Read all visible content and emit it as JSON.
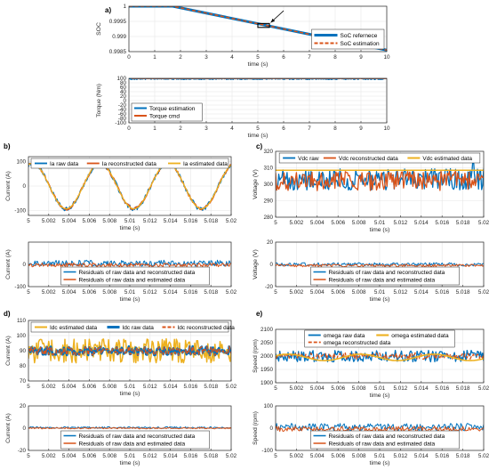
{
  "colors": {
    "blue": "#0072BD",
    "orange": "#D95319",
    "yellow": "#EDB120",
    "grid": "#e6e6e6",
    "axis": "#262626"
  },
  "chart_data": [
    {
      "id": "a-soc",
      "panel_letter": "a)",
      "type": "line",
      "xlabel": "time (s)",
      "ylabel": "SOC",
      "xlim": [
        0,
        10
      ],
      "ylim": [
        0.9985,
        1.0
      ],
      "xticks": [
        0,
        1,
        2,
        3,
        4,
        5,
        6,
        7,
        8,
        9,
        10
      ],
      "xticklabels": [
        "0",
        "1",
        "2",
        "3",
        "4",
        "5",
        "6",
        "7",
        "8",
        "9",
        "10"
      ],
      "yticks": [
        0.9985,
        0.999,
        0.9995,
        1.0
      ],
      "yticklabels": [
        "0.9985",
        "0.999",
        "0.9995",
        "1"
      ],
      "legend": "right",
      "series": [
        {
          "name": "SoC refernece",
          "color": "blue",
          "width": 3,
          "style": "solid",
          "gen": "pts",
          "x": [
            0,
            1.7,
            10
          ],
          "y": [
            1.0,
            1.0,
            0.99855
          ]
        },
        {
          "name": "SoC estimation",
          "color": "orange",
          "width": 1.5,
          "style": "dashed",
          "gen": "pts",
          "x": [
            0,
            1.7,
            10
          ],
          "y": [
            1.0,
            1.0,
            0.99855
          ]
        }
      ],
      "annotation": {
        "box_x": [
          5.0,
          5.45
        ],
        "box_y": [
          0.9993,
          0.99943
        ],
        "arrow_from": [
          6.0,
          0.99985
        ],
        "arrow_to": [
          5.5,
          0.99946
        ]
      }
    },
    {
      "id": "a-torque",
      "type": "line",
      "xlabel": "time (s)",
      "ylabel": "Torque (Nm)",
      "xlim": [
        0,
        10
      ],
      "ylim": [
        -100,
        100
      ],
      "xticks": [
        0,
        1,
        2,
        3,
        4,
        5,
        6,
        7,
        8,
        9,
        10
      ],
      "xticklabels": [
        "0",
        "1",
        "2",
        "3",
        "4",
        "5",
        "6",
        "7",
        "8",
        "9",
        "10"
      ],
      "yticks": [
        -100,
        -80,
        -60,
        -40,
        -20,
        0,
        20,
        40,
        60,
        80,
        100
      ],
      "yticklabels": [
        "-100",
        "-80",
        "-60",
        "-40",
        "-20",
        "0",
        "20",
        "40",
        "60",
        "80",
        "100"
      ],
      "legend": "bottom-left",
      "series": [
        {
          "name": "Torque estimation",
          "color": "blue",
          "width": 1.5,
          "gen": "noise",
          "base": 98,
          "amp": 3,
          "n": 420,
          "seed": 11
        },
        {
          "name": "Torque cmd",
          "color": "orange",
          "width": 1.5,
          "gen": "const",
          "base": 100,
          "x0": 0.1
        }
      ]
    },
    {
      "id": "b-top",
      "panel_letter": "b)",
      "type": "line",
      "xlabel": "time (s)",
      "ylabel": "Current (A)",
      "xlim": [
        5,
        5.02
      ],
      "ylim": [
        -120,
        120
      ],
      "xticks": [
        5,
        5.002,
        5.004,
        5.006,
        5.008,
        5.01,
        5.012,
        5.014,
        5.016,
        5.018,
        5.02
      ],
      "xticklabels": [
        "5",
        "5.002",
        "5.004",
        "5.006",
        "5.008",
        "5.01",
        "5.012",
        "5.014",
        "5.016",
        "5.018",
        "5.02"
      ],
      "yticks": [
        -100,
        0,
        100
      ],
      "yticklabels": [
        "-100",
        "0",
        "100"
      ],
      "legend": "top",
      "series": [
        {
          "name": "Ia raw data",
          "color": "blue",
          "width": 1.3,
          "gen": "sine",
          "amp": 93,
          "period": 0.00667,
          "phase": 1.2,
          "noise": 9,
          "n": 220,
          "seed": 3
        },
        {
          "name": "Ia reconstructed data",
          "color": "orange",
          "width": 1.3,
          "gen": "sine",
          "amp": 93,
          "period": 0.00667,
          "phase": 1.2,
          "noise": 6,
          "n": 220,
          "seed": 5
        },
        {
          "name": "Ia estimated data",
          "color": "yellow",
          "width": 1.3,
          "gen": "sine",
          "amp": 93,
          "period": 0.00667,
          "phase": 1.2,
          "noise": 0,
          "n": 220,
          "seed": 7
        }
      ]
    },
    {
      "id": "b-bottom",
      "type": "line",
      "xlabel": "time (s)",
      "ylabel": "Current (A)",
      "xlim": [
        5,
        5.02
      ],
      "ylim": [
        -100,
        100
      ],
      "xticks": [
        5,
        5.002,
        5.004,
        5.006,
        5.008,
        5.01,
        5.012,
        5.014,
        5.016,
        5.018,
        5.02
      ],
      "xticklabels": [
        "5",
        "5.002",
        "5.004",
        "5.006",
        "5.008",
        "5.01",
        "5.012",
        "5.014",
        "5.016",
        "5.018",
        "5.02"
      ],
      "yticks": [
        -100,
        0
      ],
      "yticklabels": [
        "-100",
        "0"
      ],
      "legend": "bottom-center",
      "series": [
        {
          "name": "Residuals of raw data and reconstructed data",
          "color": "blue",
          "width": 1,
          "gen": "noise",
          "base": 5,
          "amp": 14,
          "n": 220,
          "seed": 21
        },
        {
          "name": "Residuals of raw data and estimated data",
          "color": "orange",
          "width": 1,
          "gen": "noise",
          "base": -2,
          "amp": 9,
          "n": 220,
          "seed": 23
        }
      ]
    },
    {
      "id": "c-top",
      "panel_letter": "c)",
      "type": "line",
      "xlabel": "time (s)",
      "ylabel": "Voltage (V)",
      "xlim": [
        5,
        5.02
      ],
      "ylim": [
        280,
        320
      ],
      "xticks": [
        5,
        5.002,
        5.004,
        5.006,
        5.008,
        5.01,
        5.012,
        5.014,
        5.016,
        5.018,
        5.02
      ],
      "xticklabels": [
        "5",
        "5.002",
        "5.004",
        "5.006",
        "5.008",
        "5.01",
        "5.012",
        "5.014",
        "5.016",
        "5.018",
        "5.02"
      ],
      "yticks": [
        280,
        290,
        300,
        310,
        320
      ],
      "yticklabels": [
        "280",
        "290",
        "300",
        "310",
        "320"
      ],
      "legend": "top",
      "series": [
        {
          "name": "Vdc raw",
          "color": "blue",
          "width": 1.3,
          "gen": "noise",
          "base": 303,
          "amp": 6.5,
          "n": 200,
          "seed": 31,
          "spike_at": 5.019,
          "spike": 318
        },
        {
          "name": "Vdc reconstructed data",
          "color": "orange",
          "width": 1.3,
          "gen": "noise",
          "base": 302,
          "amp": 6,
          "n": 200,
          "seed": 33
        },
        {
          "name": "Vdc estimated data",
          "color": "yellow",
          "width": 1.5,
          "gen": "const",
          "base": 308.5
        }
      ]
    },
    {
      "id": "c-bottom",
      "type": "line",
      "xlabel": "time (s)",
      "ylabel": "Voltage (V)",
      "xlim": [
        5,
        5.02
      ],
      "ylim": [
        -20,
        20
      ],
      "xticks": [
        5,
        5.002,
        5.004,
        5.006,
        5.008,
        5.01,
        5.012,
        5.014,
        5.016,
        5.018,
        5.02
      ],
      "xticklabels": [
        "5",
        "5.002",
        "5.004",
        "5.006",
        "5.008",
        "5.01",
        "5.012",
        "5.014",
        "5.016",
        "5.018",
        "5.02"
      ],
      "yticks": [
        -20,
        0,
        20
      ],
      "yticklabels": [
        "-20",
        "0",
        "20"
      ],
      "legend": "bottom-center",
      "series": [
        {
          "name": "Residuals of raw data and reconstructed data",
          "color": "blue",
          "width": 1,
          "gen": "noise",
          "base": 0,
          "amp": 1.5,
          "n": 200,
          "seed": 41
        },
        {
          "name": "Residuals of raw data and estimated data",
          "color": "orange",
          "width": 1,
          "gen": "noise",
          "base": -1,
          "amp": 1.2,
          "n": 200,
          "seed": 43
        }
      ]
    },
    {
      "id": "d-top",
      "panel_letter": "d)",
      "type": "line",
      "xlabel": "time (s)",
      "ylabel": "Current (A)",
      "xlim": [
        5,
        5.02
      ],
      "ylim": [
        70,
        110
      ],
      "xticks": [
        5,
        5.002,
        5.004,
        5.006,
        5.008,
        5.01,
        5.012,
        5.014,
        5.016,
        5.018,
        5.02
      ],
      "xticklabels": [
        "5",
        "5.002",
        "5.004",
        "5.006",
        "5.008",
        "5.01",
        "5.012",
        "5.014",
        "5.016",
        "5.018",
        "5.02"
      ],
      "yticks": [
        70,
        80,
        90,
        100,
        110
      ],
      "yticklabels": [
        "70",
        "80",
        "90",
        "100",
        "110"
      ],
      "legend": "top",
      "series": [
        {
          "name": "Idc estimated data",
          "color": "yellow",
          "width": 1.5,
          "gen": "noise",
          "base": 90,
          "amp": 8,
          "n": 200,
          "seed": 51
        },
        {
          "name": "Idc raw data",
          "color": "blue",
          "width": 2.5,
          "gen": "noise",
          "base": 90,
          "amp": 3,
          "n": 200,
          "seed": 53
        },
        {
          "name": "Idc reconstructed data",
          "color": "orange",
          "width": 1.5,
          "style": "dashed",
          "gen": "noise",
          "base": 90,
          "amp": 3,
          "n": 200,
          "seed": 53
        }
      ]
    },
    {
      "id": "d-bottom",
      "type": "line",
      "xlabel": "time (s)",
      "ylabel": "Current (A)",
      "xlim": [
        5,
        5.02
      ],
      "ylim": [
        -20,
        20
      ],
      "xticks": [
        5,
        5.002,
        5.004,
        5.006,
        5.008,
        5.01,
        5.012,
        5.014,
        5.016,
        5.018,
        5.02
      ],
      "xticklabels": [
        "5",
        "5.002",
        "5.004",
        "5.006",
        "5.008",
        "5.01",
        "5.012",
        "5.014",
        "5.016",
        "5.018",
        "5.02"
      ],
      "yticks": [
        -20,
        0,
        20
      ],
      "yticklabels": [
        "-20",
        "0",
        "20"
      ],
      "legend": "bottom-center",
      "series": [
        {
          "name": "Residuals of raw data and reconstructed data",
          "color": "blue",
          "width": 1,
          "gen": "noise",
          "base": 0.5,
          "amp": 0.8,
          "n": 200,
          "seed": 61
        },
        {
          "name": "Residuals of raw data and estimated data",
          "color": "orange",
          "width": 1,
          "gen": "noise",
          "base": 0,
          "amp": 0.6,
          "n": 200,
          "seed": 63
        }
      ]
    },
    {
      "id": "e-top",
      "panel_letter": "e)",
      "type": "line",
      "xlabel": "time (s)",
      "ylabel": "Speed (rpm)",
      "xlim": [
        5,
        5.02
      ],
      "ylim": [
        1900,
        2100
      ],
      "xticks": [
        5,
        5.002,
        5.004,
        5.006,
        5.008,
        5.01,
        5.012,
        5.014,
        5.016,
        5.018,
        5.02
      ],
      "xticklabels": [
        "5",
        "5.002",
        "5.004",
        "5.006",
        "5.008",
        "5.01",
        "5.012",
        "5.014",
        "5.016",
        "5.018",
        "5.02"
      ],
      "yticks": [
        1900,
        1950,
        2000,
        2050,
        2100
      ],
      "yticklabels": [
        "1900",
        "1950",
        "2000",
        "2050",
        "2100"
      ],
      "legend": "top",
      "series": [
        {
          "name": "omega raw data",
          "color": "blue",
          "width": 1.3,
          "gen": "noise",
          "base": 2000,
          "amp": 22,
          "n": 200,
          "seed": 71
        },
        {
          "name": "omega reconstructed data",
          "color": "orange",
          "width": 1.3,
          "style": "dashed",
          "gen": "noise",
          "base": 2000,
          "amp": 12,
          "n": 200,
          "seed": 73
        },
        {
          "name": "omega estimated data",
          "color": "yellow",
          "width": 1.6,
          "gen": "sine",
          "amp": 12,
          "period": 0.007,
          "phase": 0.5,
          "offset": 1995,
          "noise": 0,
          "n": 200,
          "seed": 75
        }
      ]
    },
    {
      "id": "e-bottom",
      "type": "line",
      "xlabel": "time (s)",
      "ylabel": "Speed (rpm)",
      "xlim": [
        5,
        5.02
      ],
      "ylim": [
        -100,
        100
      ],
      "xticks": [
        5,
        5.002,
        5.004,
        5.006,
        5.008,
        5.01,
        5.012,
        5.014,
        5.016,
        5.018,
        5.02
      ],
      "xticklabels": [
        "5",
        "5.002",
        "5.004",
        "5.006",
        "5.008",
        "5.01",
        "5.012",
        "5.014",
        "5.016",
        "5.018",
        "5.02"
      ],
      "yticks": [
        -100,
        0,
        100
      ],
      "yticklabels": [
        "-100",
        "0",
        "100"
      ],
      "legend": "bottom-center",
      "series": [
        {
          "name": "Residuals of raw data and reconstructed data",
          "color": "blue",
          "width": 1,
          "gen": "noise",
          "base": 5,
          "amp": 16,
          "n": 200,
          "seed": 81
        },
        {
          "name": "Residuals of raw data and estimated data",
          "color": "orange",
          "width": 1,
          "gen": "noise",
          "base": -3,
          "amp": 12,
          "n": 200,
          "seed": 83
        }
      ]
    }
  ]
}
